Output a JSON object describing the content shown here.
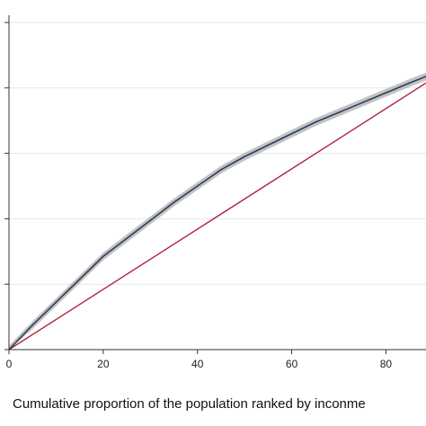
{
  "chart_data": {
    "type": "line",
    "xlabel": "Cumulative proportion of the population ranked by inconme",
    "ylabel": "",
    "title": "",
    "xlim": [
      0,
      88.5
    ],
    "ylim": [
      0,
      100
    ],
    "x_ticks": [
      0,
      20,
      40,
      60,
      80
    ],
    "x_tick_labels": [
      "0",
      "20",
      "40",
      "60",
      "80"
    ],
    "y_ticks": [
      0,
      20,
      40,
      60,
      80,
      100
    ],
    "y_tick_labels": [
      "",
      "",
      "",
      "",
      "",
      ""
    ],
    "grid": "horizontal",
    "series": [
      {
        "role": "concentration-curve",
        "color": "#2b3e5c",
        "x": [
          0,
          5,
          10,
          15,
          20,
          25,
          30,
          35,
          40,
          45,
          50,
          55,
          60,
          65,
          70,
          75,
          80,
          85,
          88.5
        ],
        "y": [
          0,
          7.5,
          14.5,
          21.5,
          28.5,
          34,
          39.5,
          45,
          50,
          55,
          59,
          62.5,
          66,
          69.5,
          72.5,
          75.5,
          78.5,
          81.5,
          83.5
        ],
        "ci_band_width": 1.2,
        "ci_color": "#b8b8b8"
      },
      {
        "role": "line-of-equality",
        "color": "#b0213f",
        "x": [
          0,
          88.5
        ],
        "y": [
          0,
          81.5
        ]
      }
    ]
  }
}
